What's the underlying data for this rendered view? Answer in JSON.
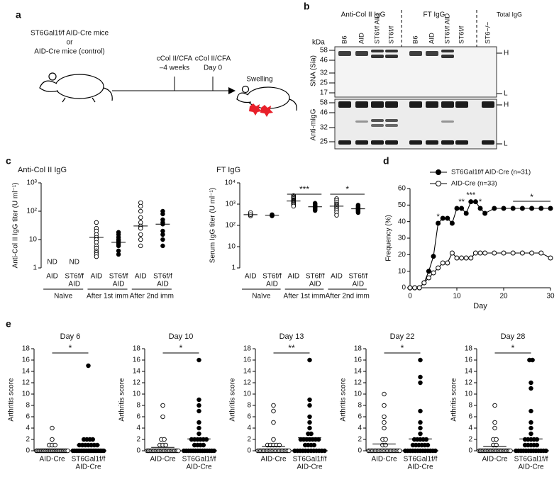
{
  "panel_a": {
    "label": "a",
    "mouse_lines": [
      "ST6Gal1f/f AID-Cre mice",
      "or",
      "AID-Cre mice (control)"
    ],
    "steps": [
      {
        "treatment": "cCol II/CFA",
        "time": "–4 weeks"
      },
      {
        "treatment": "cCol II/CFA",
        "time": "Day 0"
      }
    ],
    "outcome": "Swelling"
  },
  "panel_b": {
    "label": "b",
    "kda_label": "kDa",
    "groups": [
      "Anti-Col II IgG",
      "FT IgG",
      "Total IgG"
    ],
    "lanes": [
      "B6",
      "AID",
      "ST6f/f AID",
      "ST6f/f",
      "B6",
      "AID",
      "ST6f/f AID",
      "ST6f/f",
      "ST6−/−"
    ],
    "blots": [
      {
        "probe": "SNA (Sia)",
        "markers": [
          58,
          46,
          32,
          25,
          17
        ],
        "heavy": "H",
        "light": "L"
      },
      {
        "probe": "Anti-mIgG",
        "markers": [
          58,
          46,
          32,
          25
        ],
        "heavy": "H",
        "light": "L"
      }
    ]
  },
  "chart_data": [
    {
      "type": "dot",
      "label": "c",
      "title": "Anti-Col II IgG",
      "y_label": "Anti-Col II IgG titer (U ml⁻¹)",
      "log_scale": true,
      "color": "#000000",
      "ylim": [
        1,
        1000
      ],
      "yticks": [
        1,
        10,
        {
          "value": 100,
          "label": "10²"
        },
        {
          "value": 1000,
          "label": "10³"
        }
      ],
      "categories": [
        [
          "AID"
        ],
        [
          "ST6f/f",
          "AID"
        ],
        [
          "AID"
        ],
        [
          "ST6f/f",
          "AID"
        ],
        [
          "AID"
        ],
        [
          "ST6f/f",
          "AID"
        ]
      ],
      "groups": [
        "Naïve",
        "After 1st imm",
        "After 2nd imm"
      ],
      "filled": [
        false,
        true,
        false,
        true,
        false,
        true
      ],
      "points": [
        [],
        [],
        [
          40,
          25,
          20,
          15,
          12,
          10,
          8,
          6,
          5,
          4,
          3.5,
          3,
          2.5
        ],
        [
          18,
          15,
          12,
          10,
          9,
          8,
          7,
          6,
          4,
          3
        ],
        [
          200,
          150,
          100,
          60,
          40,
          30,
          25,
          15,
          10,
          6
        ],
        [
          100,
          80,
          50,
          40,
          35,
          20,
          15,
          10,
          6
        ]
      ],
      "means": [
        null,
        null,
        12,
        8,
        30,
        35
      ],
      "nd_labels": [
        "ND",
        "ND",
        null,
        null,
        null,
        null
      ],
      "significance": [
        null,
        null,
        null
      ]
    },
    {
      "type": "dot",
      "title": "FT IgG",
      "y_label": "Serum IgG titer (U ml⁻¹)",
      "log_scale": true,
      "color": "#000000",
      "ylim": [
        1,
        10000
      ],
      "yticks": [
        1,
        10,
        {
          "value": 100,
          "label": "10²"
        },
        {
          "value": 1000,
          "label": "10³"
        },
        {
          "value": 10000,
          "label": "10⁴"
        }
      ],
      "categories": [
        [
          "AID"
        ],
        [
          "ST6f/f",
          "AID"
        ],
        [
          "AID"
        ],
        [
          "ST6f/f",
          "AID"
        ],
        [
          "AID"
        ],
        [
          "ST6f/f",
          "AID"
        ]
      ],
      "groups": [
        "Naïve",
        "After 1st imm",
        "After 2nd imm"
      ],
      "filled": [
        false,
        true,
        false,
        true,
        false,
        true
      ],
      "points": [
        [
          350,
          400,
          300,
          280,
          320
        ],
        [
          300,
          280,
          320,
          310,
          290
        ],
        [
          2500,
          2200,
          2000,
          1800,
          1600,
          1500,
          1400,
          1300,
          1200,
          1100,
          1000,
          900,
          800
        ],
        [
          1100,
          1000,
          900,
          850,
          800,
          750,
          700,
          650,
          600,
          550,
          500
        ],
        [
          1800,
          1500,
          1200,
          1000,
          900,
          800,
          700,
          600,
          500,
          400,
          300
        ],
        [
          900,
          800,
          700,
          650,
          600,
          550,
          500,
          450,
          400
        ]
      ],
      "means": [
        320,
        300,
        1400,
        750,
        800,
        600
      ],
      "significance": [
        null,
        "***",
        "*"
      ]
    },
    {
      "type": "line",
      "label": "d",
      "x_label": "Day",
      "y_label": "Frequency (%)",
      "xlim": [
        0,
        30
      ],
      "xticks": [
        0,
        10,
        20,
        30
      ],
      "ylim": [
        0,
        60
      ],
      "yticks": [
        0,
        10,
        20,
        30,
        40,
        50,
        60
      ],
      "x": [
        0,
        1,
        2,
        3,
        4,
        5,
        6,
        7,
        8,
        9,
        10,
        11,
        12,
        13,
        14,
        15,
        16,
        18,
        20,
        22,
        24,
        26,
        28,
        30
      ],
      "series": [
        {
          "name": "ST6Gal1f/f AID-Cre (n=31)",
          "color": "#000000",
          "filled": true,
          "values": [
            0,
            0,
            0,
            3,
            10,
            19,
            39,
            42,
            42,
            39,
            48,
            48,
            45,
            52,
            52,
            48,
            45,
            48,
            48,
            48,
            48,
            48,
            48,
            48
          ]
        },
        {
          "name": "AID-Cre (n=33)",
          "color": "#000000",
          "filled": false,
          "values": [
            0,
            0,
            0,
            3,
            6,
            9,
            12,
            15,
            15,
            21,
            18,
            18,
            18,
            18,
            21,
            21,
            21,
            21,
            21,
            21,
            21,
            21,
            21,
            18
          ]
        }
      ],
      "annotations": [
        {
          "text": "*",
          "x": 6
        },
        {
          "text": "**",
          "x": 11
        },
        {
          "text": "***",
          "x": 13
        },
        {
          "text": "*",
          "x": 15
        },
        {
          "text": "*",
          "x": 26,
          "span": [
            22,
            30
          ]
        }
      ]
    },
    {
      "type": "dot",
      "label": "e",
      "title": "Day 6",
      "y_label": "Arthritis score",
      "color": "#000000",
      "ylim": [
        0,
        18
      ],
      "yticks": [
        0,
        2,
        4,
        6,
        8,
        10,
        12,
        14,
        16,
        18
      ],
      "categories": [
        [
          "AID-Cre"
        ],
        [
          "ST6Gal1f/f",
          "AID-Cre"
        ]
      ],
      "filled": [
        false,
        true
      ],
      "points": [
        [
          0,
          0,
          0,
          0,
          0,
          0,
          0,
          0,
          0,
          0,
          0,
          0,
          0,
          0,
          0,
          0,
          0,
          0,
          0,
          0,
          0,
          0,
          0,
          0,
          0,
          0,
          0,
          0,
          1,
          1,
          1,
          2,
          4
        ],
        [
          0,
          0,
          0,
          0,
          0,
          0,
          0,
          0,
          0,
          0,
          0,
          0,
          0,
          0,
          0,
          0,
          0,
          0,
          0,
          1,
          1,
          1,
          1,
          1,
          1,
          1,
          2,
          2,
          2,
          2,
          15
        ]
      ],
      "means": [
        0.3,
        1.0
      ],
      "significance": "*"
    },
    {
      "type": "dot",
      "title": "Day 10",
      "y_label": "Arthritis score",
      "color": "#000000",
      "ylim": [
        0,
        18
      ],
      "yticks": [
        0,
        2,
        4,
        6,
        8,
        10,
        12,
        14,
        16,
        18
      ],
      "categories": [
        [
          "AID-Cre"
        ],
        [
          "ST6Gal1f/f",
          "AID-Cre"
        ]
      ],
      "filled": [
        false,
        true
      ],
      "points": [
        [
          0,
          0,
          0,
          0,
          0,
          0,
          0,
          0,
          0,
          0,
          0,
          0,
          0,
          0,
          0,
          0,
          0,
          0,
          0,
          0,
          0,
          0,
          0,
          0,
          0,
          0,
          1,
          1,
          1,
          2,
          2,
          6,
          8
        ],
        [
          0,
          0,
          0,
          0,
          0,
          0,
          0,
          0,
          0,
          0,
          0,
          0,
          0,
          0,
          1,
          1,
          1,
          1,
          2,
          2,
          2,
          2,
          2,
          2,
          3,
          4,
          5,
          7,
          8,
          9,
          16
        ]
      ],
      "means": [
        0.6,
        2.1
      ],
      "significance": "*"
    },
    {
      "type": "dot",
      "title": "Day 13",
      "y_label": "Arthritis score",
      "color": "#000000",
      "ylim": [
        0,
        18
      ],
      "yticks": [
        0,
        2,
        4,
        6,
        8,
        10,
        12,
        14,
        16,
        18
      ],
      "categories": [
        [
          "AID-Cre"
        ],
        [
          "ST6Gal1f/f",
          "AID-Cre"
        ]
      ],
      "filled": [
        false,
        true
      ],
      "points": [
        [
          0,
          0,
          0,
          0,
          0,
          0,
          0,
          0,
          0,
          0,
          0,
          0,
          0,
          0,
          0,
          0,
          0,
          0,
          0,
          0,
          0,
          0,
          0,
          0,
          1,
          1,
          1,
          1,
          1,
          2,
          5,
          7,
          8
        ],
        [
          0,
          0,
          0,
          0,
          0,
          0,
          0,
          0,
          0,
          0,
          0,
          0,
          1,
          1,
          1,
          1,
          2,
          2,
          2,
          2,
          2,
          2,
          2,
          3,
          3,
          4,
          5,
          6,
          8,
          9,
          16
        ]
      ],
      "means": [
        0.8,
        2.3
      ],
      "significance": "**"
    },
    {
      "type": "dot",
      "title": "Day 22",
      "y_label": "Arthritis score",
      "color": "#000000",
      "ylim": [
        0,
        18
      ],
      "yticks": [
        0,
        2,
        4,
        6,
        8,
        10,
        12,
        14,
        16,
        18
      ],
      "categories": [
        [
          "AID-Cre"
        ],
        [
          "ST6Gal1f/f",
          "AID-Cre"
        ]
      ],
      "filled": [
        false,
        true
      ],
      "points": [
        [
          0,
          0,
          0,
          0,
          0,
          0,
          0,
          0,
          0,
          0,
          0,
          0,
          0,
          0,
          0,
          0,
          0,
          0,
          0,
          0,
          0,
          0,
          0,
          0,
          1,
          1,
          2,
          2,
          4,
          5,
          6,
          8,
          10
        ],
        [
          0,
          0,
          0,
          0,
          0,
          0,
          0,
          0,
          0,
          0,
          0,
          0,
          0,
          1,
          1,
          1,
          1,
          1,
          1,
          2,
          2,
          2,
          2,
          2,
          3,
          4,
          5,
          7,
          12,
          13,
          16
        ]
      ],
      "means": [
        1.2,
        2.1
      ],
      "significance": "*"
    },
    {
      "type": "dot",
      "title": "Day 28",
      "y_label": "Arthritis score",
      "color": "#000000",
      "ylim": [
        0,
        18
      ],
      "yticks": [
        0,
        2,
        4,
        6,
        8,
        10,
        12,
        14,
        16,
        18
      ],
      "categories": [
        [
          "AID-Cre"
        ],
        [
          "ST6Gal1f/f",
          "AID-Cre"
        ]
      ],
      "filled": [
        false,
        true
      ],
      "points": [
        [
          0,
          0,
          0,
          0,
          0,
          0,
          0,
          0,
          0,
          0,
          0,
          0,
          0,
          0,
          0,
          0,
          0,
          0,
          0,
          0,
          0,
          0,
          0,
          0,
          0,
          0,
          1,
          1,
          2,
          2,
          4,
          5,
          8
        ],
        [
          0,
          0,
          0,
          0,
          0,
          0,
          0,
          0,
          0,
          0,
          0,
          0,
          0,
          1,
          1,
          1,
          1,
          1,
          2,
          2,
          2,
          2,
          2,
          3,
          4,
          5,
          7,
          11,
          12,
          16,
          16
        ]
      ],
      "means": [
        0.8,
        2.1
      ],
      "significance": "*"
    }
  ]
}
